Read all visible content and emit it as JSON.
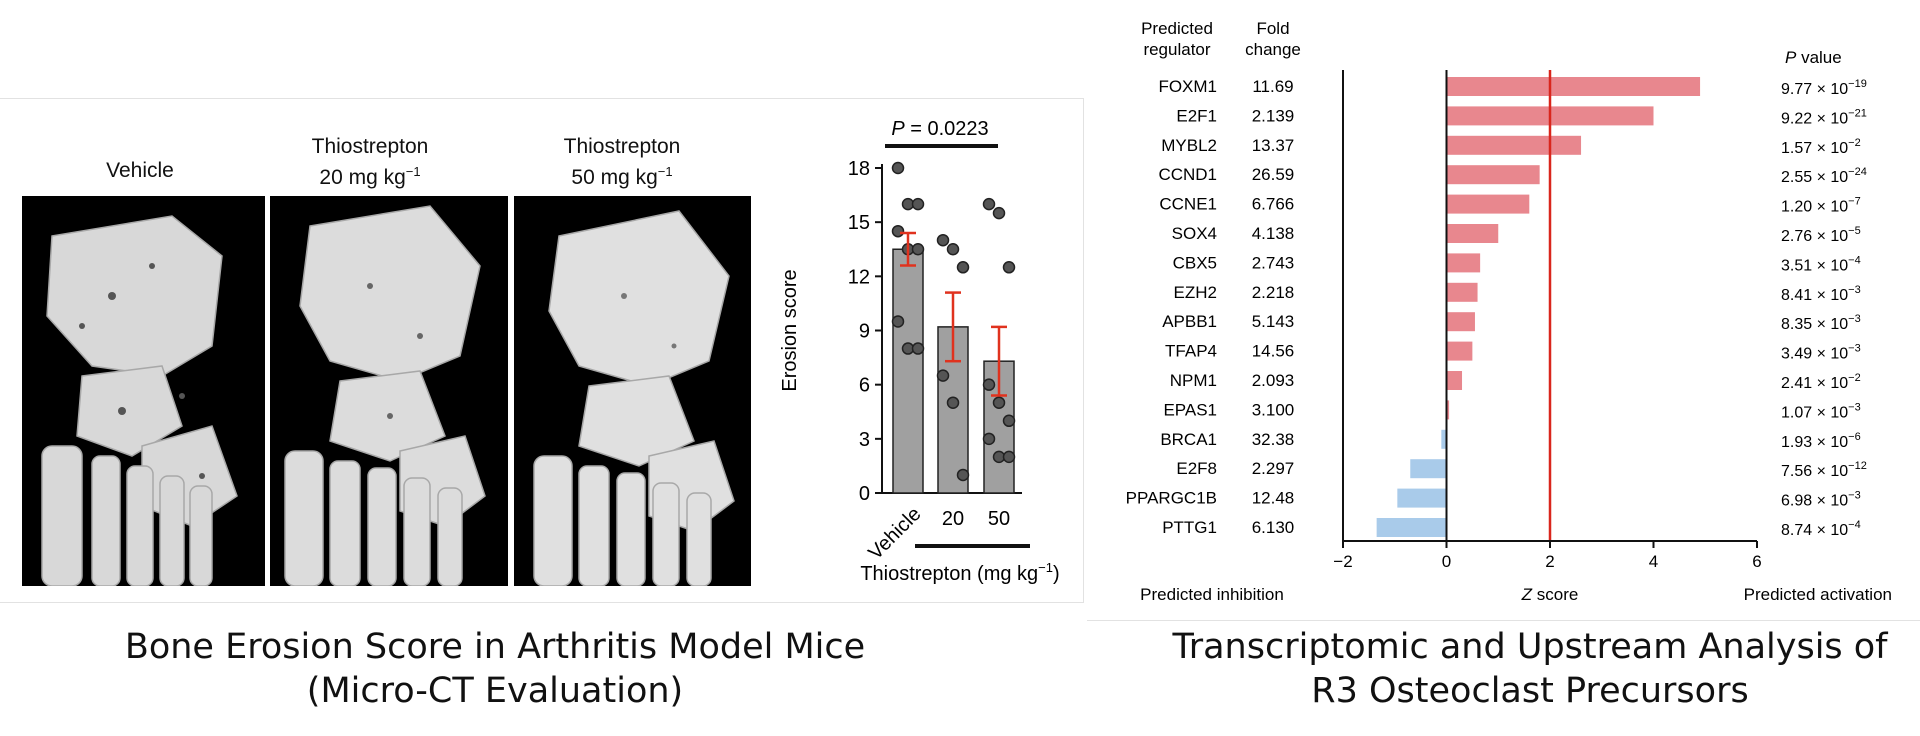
{
  "left_figure": {
    "image_labels": [
      {
        "line1": "Vehicle",
        "line2": ""
      },
      {
        "line1": "Thiostrepton",
        "line2": "20 mg kg",
        "sup": "−1"
      },
      {
        "line1": "Thiostrepton",
        "line2": "50 mg kg",
        "sup": "−1"
      }
    ],
    "caption_line1": "Bone Erosion Score in Arthritis  Model Mice",
    "caption_line2": "(Micro-CT Evaluation)"
  },
  "right_figure": {
    "caption_line1": "Transcriptomic and Upstream Analysis of",
    "caption_line2": "R3 Osteoclast Precursors"
  },
  "chart_data": [
    {
      "type": "bar",
      "categories": [
        "Vehicle",
        "20",
        "50"
      ],
      "values": [
        13.5,
        9.2,
        7.3
      ],
      "error": [
        0.9,
        1.9,
        1.9
      ],
      "points": [
        [
          18,
          16,
          16,
          14.5,
          13.5,
          13.5,
          9.5,
          8,
          8
        ],
        [
          14,
          13.5,
          12.5,
          6.5,
          5,
          1
        ],
        [
          16,
          15.5,
          12.5,
          6,
          5,
          4,
          3,
          2,
          2
        ]
      ],
      "ylabel": "Erosion score",
      "xlabel": "Thiostrepton (mg kg",
      "xlabel_sup": "−1",
      "xlabel_close": ")",
      "pvalue_label": "P",
      "pvalue_text": " = 0.0223",
      "ylim": [
        0,
        18
      ],
      "yticks": [
        0,
        3,
        6,
        9,
        12,
        15,
        18
      ],
      "colors": {
        "bar": "#a0a0a0",
        "error": "#e0321e",
        "points": "#555555"
      }
    },
    {
      "type": "bar",
      "orientation": "horizontal",
      "header_regulator": [
        "Predicted",
        "regulator"
      ],
      "header_fold": [
        "Fold",
        "change"
      ],
      "header_pvalue": "P value",
      "categories": [
        "FOXM1",
        "E2F1",
        "MYBL2",
        "CCND1",
        "CCNE1",
        "SOX4",
        "CBX5",
        "EZH2",
        "APBB1",
        "TFAP4",
        "NPM1",
        "EPAS1",
        "BRCA1",
        "E2F8",
        "PPARGC1B",
        "PTTG1"
      ],
      "fold_change": [
        "11.69",
        "2.139",
        "13.37",
        "26.59",
        "6.766",
        "4.138",
        "2.743",
        "2.218",
        "5.143",
        "14.56",
        "2.093",
        "3.100",
        "32.38",
        "2.297",
        "12.48",
        "6.130"
      ],
      "p_values": [
        [
          "9.77",
          "−19"
        ],
        [
          "9.22",
          "−21"
        ],
        [
          "1.57",
          "−2"
        ],
        [
          "2.55",
          "−24"
        ],
        [
          "1.20",
          "−7"
        ],
        [
          "2.76",
          "−5"
        ],
        [
          "3.51",
          "−4"
        ],
        [
          "8.41",
          "−3"
        ],
        [
          "8.35",
          "−3"
        ],
        [
          "3.49",
          "−3"
        ],
        [
          "2.41",
          "−2"
        ],
        [
          "1.07",
          "−3"
        ],
        [
          "1.93",
          "−6"
        ],
        [
          "7.56",
          "−12"
        ],
        [
          "6.98",
          "−3"
        ],
        [
          "8.74",
          "−4"
        ]
      ],
      "values": [
        4.9,
        4.0,
        2.6,
        1.8,
        1.6,
        1.0,
        0.65,
        0.6,
        0.55,
        0.5,
        0.3,
        0.05,
        -0.1,
        -0.7,
        -0.95,
        -1.35
      ],
      "xlim": [
        -2,
        6
      ],
      "xticks": [
        -2,
        0,
        2,
        4,
        6
      ],
      "threshold": 2,
      "xlabel_z": "Z",
      "xlabel": " score",
      "label_left": "Predicted inhibition",
      "label_right": "Predicted activation",
      "colors": {
        "activation": "#e8878e",
        "inhibition": "#a9cbea",
        "threshold": "#d9261c"
      }
    }
  ]
}
